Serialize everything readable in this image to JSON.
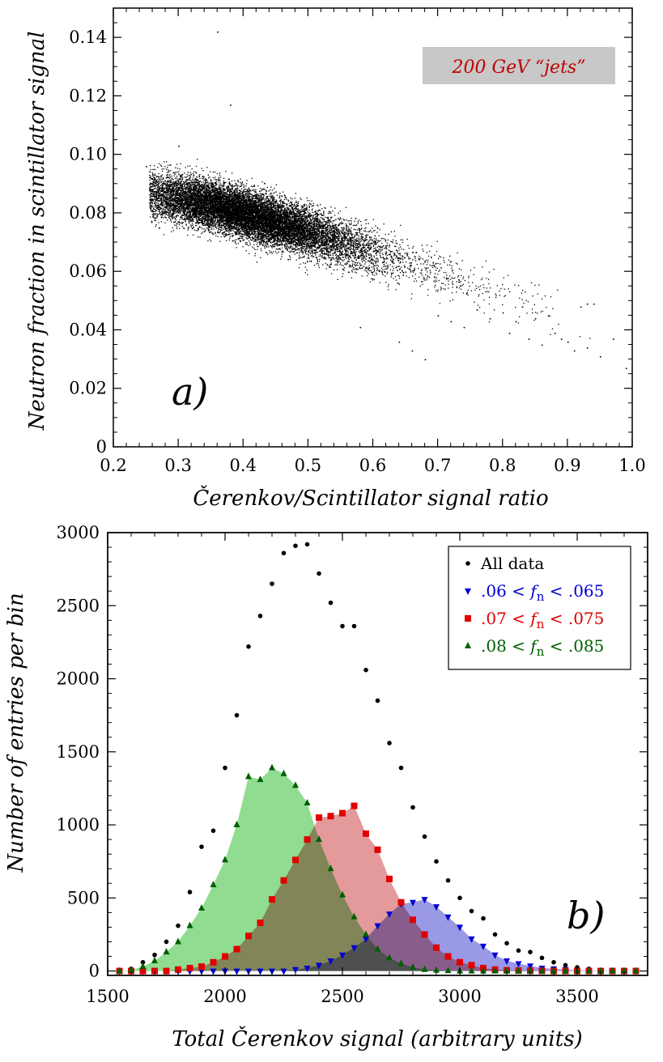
{
  "chart_data": [
    {
      "type": "scatter",
      "panel_label": "a)",
      "annotation": "200 GeV “jets”",
      "annotation_color": "#c00000",
      "xlabel": "Čerenkov/Scintillator signal ratio",
      "ylabel": "Neutron fraction in scintillator signal",
      "xlim": [
        0.2,
        1.0
      ],
      "ylim": [
        0,
        0.15
      ],
      "xticks": [
        0.2,
        0.3,
        0.4,
        0.5,
        0.6,
        0.7,
        0.8,
        0.9,
        1.0
      ],
      "yticks": [
        0,
        0.02,
        0.04,
        0.06,
        0.08,
        0.1,
        0.12,
        0.14
      ],
      "xtick_labels": [
        "0.2",
        "0.3",
        "0.4",
        "0.5",
        "0.6",
        "0.7",
        "0.8",
        "0.9",
        "1.0"
      ],
      "ytick_labels": [
        "0",
        "0.02",
        "0.04",
        "0.06",
        "0.08",
        "0.10",
        "0.12",
        "0.14"
      ],
      "grid": false,
      "point_color": "#000000",
      "trend": {
        "x": [
          0.25,
          0.35,
          0.45,
          0.55,
          0.65,
          0.75,
          0.85,
          0.95
        ],
        "y": [
          0.087,
          0.083,
          0.077,
          0.07,
          0.063,
          0.056,
          0.048,
          0.04
        ],
        "y_spread": 0.0075
      },
      "points": [
        {
          "x": 0.25,
          "y": 0.096
        },
        {
          "x": 0.27,
          "y": 0.075
        },
        {
          "x": 0.3,
          "y": 0.103
        },
        {
          "x": 0.36,
          "y": 0.142
        },
        {
          "x": 0.38,
          "y": 0.117
        },
        {
          "x": 0.58,
          "y": 0.041
        },
        {
          "x": 0.64,
          "y": 0.036
        },
        {
          "x": 0.66,
          "y": 0.033
        },
        {
          "x": 0.68,
          "y": 0.03
        },
        {
          "x": 0.7,
          "y": 0.045
        },
        {
          "x": 0.72,
          "y": 0.043
        },
        {
          "x": 0.74,
          "y": 0.041
        },
        {
          "x": 0.76,
          "y": 0.047
        },
        {
          "x": 0.78,
          "y": 0.044
        },
        {
          "x": 0.8,
          "y": 0.046
        },
        {
          "x": 0.81,
          "y": 0.039
        },
        {
          "x": 0.82,
          "y": 0.043
        },
        {
          "x": 0.83,
          "y": 0.048
        },
        {
          "x": 0.84,
          "y": 0.037
        },
        {
          "x": 0.85,
          "y": 0.044
        },
        {
          "x": 0.86,
          "y": 0.035
        },
        {
          "x": 0.87,
          "y": 0.045
        },
        {
          "x": 0.88,
          "y": 0.039
        },
        {
          "x": 0.89,
          "y": 0.037
        },
        {
          "x": 0.9,
          "y": 0.036
        },
        {
          "x": 0.91,
          "y": 0.033
        },
        {
          "x": 0.92,
          "y": 0.048
        },
        {
          "x": 0.93,
          "y": 0.049
        },
        {
          "x": 0.93,
          "y": 0.034
        },
        {
          "x": 0.94,
          "y": 0.049
        },
        {
          "x": 0.95,
          "y": 0.031
        },
        {
          "x": 0.97,
          "y": 0.037
        },
        {
          "x": 0.99,
          "y": 0.027
        }
      ]
    },
    {
      "type": "scatter",
      "panel_label": "b)",
      "xlabel": "Total Čerenkov signal (arbitrary units)",
      "ylabel": "Number of entries per bin",
      "xlim": [
        1500,
        3800
      ],
      "ylim": [
        -30,
        3000
      ],
      "xticks": [
        1500,
        2000,
        2500,
        3000,
        3500
      ],
      "yticks": [
        0,
        500,
        1000,
        1500,
        2000,
        2500,
        3000
      ],
      "xtick_labels": [
        "1500",
        "2000",
        "2500",
        "3000",
        "3500"
      ],
      "ytick_labels": [
        "0",
        "500",
        "1000",
        "1500",
        "2000",
        "2500",
        "3000"
      ],
      "grid": false,
      "legend_position": "top-right",
      "series": [
        {
          "name": "All data",
          "marker": "circle",
          "color": "#000000",
          "x": [
            1550,
            1600,
            1650,
            1700,
            1750,
            1800,
            1850,
            1900,
            1950,
            2000,
            2050,
            2100,
            2150,
            2200,
            2250,
            2300,
            2350,
            2400,
            2450,
            2500,
            2550,
            2600,
            2650,
            2700,
            2750,
            2800,
            2850,
            2900,
            2950,
            3000,
            3050,
            3100,
            3150,
            3200,
            3250,
            3300,
            3350,
            3400,
            3450,
            3500,
            3550,
            3600,
            3650,
            3700,
            3750
          ],
          "y": [
            2,
            15,
            60,
            110,
            200,
            310,
            540,
            850,
            960,
            1390,
            1750,
            2220,
            2430,
            2650,
            2860,
            2910,
            2920,
            2720,
            2520,
            2360,
            2360,
            2060,
            1850,
            1560,
            1390,
            1120,
            920,
            750,
            620,
            500,
            410,
            360,
            250,
            190,
            140,
            130,
            90,
            60,
            40,
            25,
            15,
            8,
            5,
            3,
            2
          ]
        },
        {
          "name": ".06 < f_n < .065",
          "legend_prefix": ".06 < ",
          "legend_var": "f",
          "legend_sub": "n",
          "legend_suffix": " < .065",
          "marker": "triangle-down",
          "color": "#0000d0",
          "fill": "#9999e6",
          "x": [
            1550,
            1600,
            1650,
            1700,
            1750,
            1800,
            1850,
            1900,
            1950,
            2000,
            2050,
            2100,
            2150,
            2200,
            2250,
            2300,
            2350,
            2400,
            2450,
            2500,
            2550,
            2600,
            2650,
            2700,
            2750,
            2800,
            2850,
            2900,
            2950,
            3000,
            3050,
            3100,
            3150,
            3200,
            3250,
            3300,
            3350,
            3400,
            3450,
            3500,
            3550,
            3600,
            3650,
            3700,
            3750
          ],
          "y": [
            0,
            0,
            0,
            0,
            0,
            0,
            0,
            0,
            0,
            0,
            0,
            0,
            0,
            0,
            0,
            10,
            20,
            40,
            70,
            110,
            160,
            220,
            310,
            390,
            460,
            470,
            490,
            440,
            370,
            300,
            220,
            170,
            110,
            70,
            50,
            35,
            20,
            15,
            10,
            5,
            3,
            2,
            1,
            0,
            0
          ]
        },
        {
          "name": ".07 < f_n < .075",
          "legend_prefix": ".07 < ",
          "legend_var": "f",
          "legend_sub": "n",
          "legend_suffix": " < .075",
          "marker": "square",
          "color": "#e00000",
          "fill": "#e49a9a",
          "x": [
            1550,
            1600,
            1650,
            1700,
            1750,
            1800,
            1850,
            1900,
            1950,
            2000,
            2050,
            2100,
            2150,
            2200,
            2250,
            2300,
            2350,
            2400,
            2450,
            2500,
            2550,
            2600,
            2650,
            2700,
            2750,
            2800,
            2850,
            2900,
            2950,
            3000,
            3050,
            3100,
            3150,
            3200,
            3250,
            3300,
            3350,
            3400,
            3450,
            3500,
            3550,
            3600,
            3650,
            3700,
            3750
          ],
          "y": [
            0,
            0,
            0,
            0,
            0,
            10,
            20,
            30,
            60,
            100,
            150,
            240,
            330,
            490,
            620,
            760,
            900,
            1050,
            1060,
            1080,
            1130,
            940,
            830,
            630,
            470,
            350,
            250,
            160,
            100,
            60,
            40,
            20,
            10,
            5,
            3,
            2,
            1,
            0,
            0,
            0,
            0,
            0,
            0,
            0,
            0
          ]
        },
        {
          "name": ".08 < f_n < .085",
          "legend_prefix": ".08 < ",
          "legend_var": "f",
          "legend_sub": "n",
          "legend_suffix": " < .085",
          "marker": "triangle-up",
          "color": "#006000",
          "fill": "#90dc90",
          "x": [
            1550,
            1600,
            1650,
            1700,
            1750,
            1800,
            1850,
            1900,
            1950,
            2000,
            2050,
            2100,
            2150,
            2200,
            2250,
            2300,
            2350,
            2400,
            2450,
            2500,
            2550,
            2600,
            2650,
            2700,
            2750,
            2800,
            2850,
            2900,
            2950,
            3000,
            3050,
            3100,
            3150,
            3200,
            3250,
            3300,
            3350,
            3400,
            3450,
            3500,
            3550,
            3600,
            3650,
            3700,
            3750
          ],
          "y": [
            0,
            5,
            30,
            70,
            130,
            200,
            310,
            430,
            590,
            760,
            1000,
            1330,
            1310,
            1390,
            1350,
            1270,
            1150,
            900,
            700,
            520,
            370,
            250,
            150,
            90,
            50,
            25,
            10,
            5,
            2,
            0,
            0,
            0,
            0,
            0,
            0,
            0,
            0,
            0,
            0,
            0,
            0,
            0,
            0,
            0,
            0
          ]
        }
      ]
    }
  ]
}
